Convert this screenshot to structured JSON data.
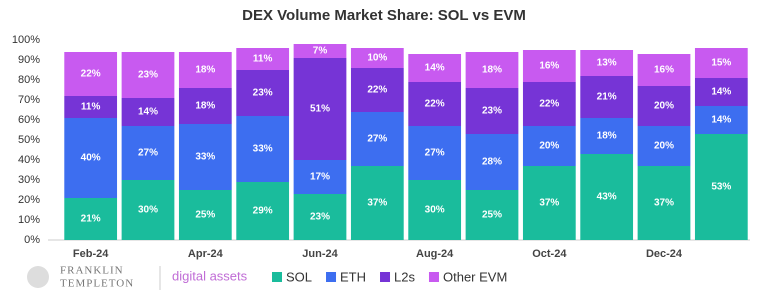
{
  "chart_data": {
    "type": "stacked_bar",
    "title": "DEX Volume Market Share: SOL vs EVM",
    "categories": [
      "Feb-24",
      null,
      "Apr-24",
      null,
      "Jun-24",
      null,
      "Aug-24",
      null,
      "Oct-24",
      null,
      "Dec-24",
      null
    ],
    "series": [
      {
        "name": "SOL",
        "color": "#1abc9c",
        "values": [
          21,
          30,
          25,
          29,
          23,
          37,
          30,
          25,
          37,
          43,
          37,
          53
        ],
        "value_labels": [
          "21%",
          "30%",
          "25%",
          "29%",
          "23%",
          "37%",
          "30%",
          "25%",
          "37%",
          "43%",
          "37%",
          "53%"
        ]
      },
      {
        "name": "ETH",
        "color": "#3d6ef0",
        "values": [
          40,
          27,
          33,
          33,
          17,
          27,
          27,
          28,
          20,
          18,
          20,
          14
        ],
        "value_labels": [
          "40%",
          "27%",
          "33%",
          "33%",
          "17%",
          "27%",
          "27%",
          "28%",
          "20%",
          "18%",
          "20%",
          "14%"
        ]
      },
      {
        "name": "L2s",
        "color": "#7634d6",
        "values": [
          11,
          14,
          18,
          23,
          51,
          22,
          22,
          23,
          22,
          21,
          20,
          14
        ],
        "value_labels": [
          "11%",
          "14%",
          "18%",
          "23%",
          "51%",
          "22%",
          "22%",
          "23%",
          "22%",
          "21%",
          "20%",
          "14%"
        ]
      },
      {
        "name": "Other EVM",
        "color": "#c85af0",
        "values": [
          22,
          23,
          18,
          11,
          7,
          10,
          14,
          18,
          16,
          13,
          16,
          15
        ],
        "value_labels": [
          "22%",
          "23%",
          "18%",
          "11%",
          "7%",
          "10%",
          "14%",
          "18%",
          "16%",
          "13%",
          "16%",
          "15%"
        ]
      }
    ],
    "ylim": [
      0,
      100
    ],
    "yticks": [
      {
        "value": 0,
        "label": "0%"
      },
      {
        "value": 10,
        "label": "10%"
      },
      {
        "value": 20,
        "label": "20%"
      },
      {
        "value": 30,
        "label": "30%"
      },
      {
        "value": 40,
        "label": "40%"
      },
      {
        "value": 50,
        "label": "50%"
      },
      {
        "value": 60,
        "label": "60%"
      },
      {
        "value": 70,
        "label": "70%"
      },
      {
        "value": 80,
        "label": "80%"
      },
      {
        "value": 90,
        "label": "90%"
      },
      {
        "value": 100,
        "label": "100%"
      }
    ],
    "grid": false,
    "legend": "bottom"
  },
  "footer": {
    "brand_top": "FRANKLIN",
    "brand_bottom": "TEMPLETON",
    "unit": "digital assets"
  }
}
